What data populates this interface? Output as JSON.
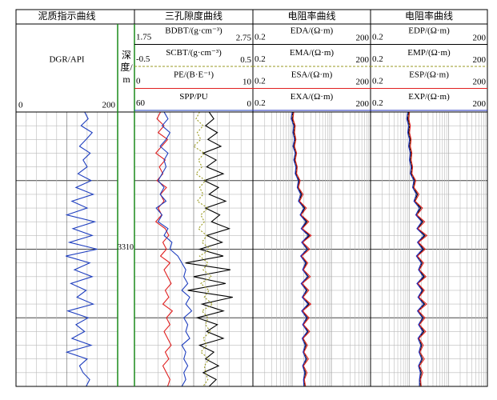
{
  "chart_data": {
    "type": "well-log",
    "ylim": [
      3300,
      3320
    ],
    "yticks": [
      3310
    ],
    "grid": {
      "major": 5,
      "minor": 1
    },
    "depth_label": "深度/m",
    "depth": [
      3300,
      3300.5,
      3301,
      3301.5,
      3302,
      3302.5,
      3303,
      3303.5,
      3304,
      3304.5,
      3305,
      3305.5,
      3306,
      3306.5,
      3307,
      3307.5,
      3308,
      3308.5,
      3309,
      3309.5,
      3310,
      3310.5,
      3311,
      3311.5,
      3312,
      3312.5,
      3313,
      3313.5,
      3314,
      3314.5,
      3315,
      3315.5,
      3316,
      3316.5,
      3317,
      3317.5,
      3318,
      3318.5,
      3319,
      3319.5,
      3320
    ],
    "tracks": [
      {
        "title": "泥质指示曲线",
        "curves": [
          {
            "name": "DGR/API",
            "color": "#1f3fbf",
            "xlim": [
              0,
              200
            ],
            "log": false,
            "dash": false,
            "values": [
              135,
              142,
              128,
              150,
              138,
              125,
              146,
              132,
              140,
              122,
              148,
              118,
              152,
              110,
              140,
              100,
              155,
              112,
              150,
              105,
              160,
              98,
              145,
              115,
              150,
              108,
              138,
              120,
              152,
              102,
              142,
              118,
              135,
              110,
              148,
              100,
              140,
              125,
              132,
              145,
              138
            ]
          }
        ]
      },
      {
        "title": "三孔隙度曲线",
        "curves": [
          {
            "name": "BDBT/(g·cm⁻³)",
            "color": "#000000",
            "xlim": [
              1.75,
              2.75
            ],
            "log": false,
            "dash": false,
            "values": [
              2.38,
              2.42,
              2.35,
              2.45,
              2.37,
              2.48,
              2.33,
              2.44,
              2.36,
              2.5,
              2.34,
              2.46,
              2.38,
              2.52,
              2.35,
              2.47,
              2.4,
              2.55,
              2.36,
              2.49,
              2.3,
              2.5,
              2.18,
              2.56,
              2.25,
              2.52,
              2.2,
              2.58,
              2.32,
              2.5,
              2.28,
              2.45,
              2.36,
              2.5,
              2.3,
              2.42,
              2.35,
              2.46,
              2.33,
              2.44,
              2.38
            ]
          },
          {
            "name": "SCBT/(g·cm⁻³)",
            "color": "#9a9a20",
            "xlim": [
              -0.5,
              0.5
            ],
            "log": false,
            "dash": true,
            "values": [
              0.05,
              0.02,
              0.08,
              0.03,
              0.06,
              0.0,
              0.09,
              0.04,
              0.07,
              0.02,
              0.1,
              0.05,
              0.08,
              0.03,
              0.12,
              0.06,
              0.09,
              0.04,
              0.11,
              0.07,
              0.14,
              0.05,
              0.12,
              0.08,
              0.15,
              0.06,
              0.13,
              0.09,
              0.16,
              0.07,
              0.12,
              0.1,
              0.14,
              0.08,
              0.11,
              0.06,
              0.13,
              0.09,
              0.1,
              0.12,
              0.08
            ]
          },
          {
            "name": "PE/(B·E⁻¹)",
            "color": "#e02020",
            "xlim": [
              0,
              10
            ],
            "log": false,
            "dash": false,
            "values": [
              2.2,
              1.9,
              2.5,
              2.0,
              2.8,
              2.3,
              1.8,
              2.6,
              2.1,
              2.4,
              1.9,
              2.7,
              2.2,
              2.5,
              2.0,
              2.3,
              1.8,
              2.6,
              2.9,
              2.4,
              2.7,
              2.2,
              3.0,
              2.5,
              2.8,
              3.1,
              2.6,
              2.9,
              2.4,
              3.2,
              2.7,
              3.0,
              2.5,
              2.8,
              3.1,
              2.6,
              2.9,
              2.4,
              2.7,
              3.0,
              2.8
            ]
          },
          {
            "name": "SPP/PU",
            "color": "#1f3fbf",
            "xlim": [
              60,
              0
            ],
            "log": false,
            "dash": false,
            "values": [
              45,
              43,
              46,
              42,
              44,
              47,
              43,
              45,
              44,
              46,
              48,
              45,
              47,
              44,
              49,
              46,
              48,
              43,
              45,
              41,
              42,
              38,
              36,
              34,
              35,
              33,
              36,
              32,
              34,
              31,
              35,
              33,
              34,
              32,
              36,
              34,
              35,
              33,
              35,
              34,
              36
            ]
          }
        ]
      },
      {
        "title": "电阻率曲线",
        "curves": [
          {
            "name": "EDA/(Ω·m)",
            "color": "#000000",
            "xlim": [
              0.2,
              200
            ],
            "log": true,
            "dash": false,
            "values": [
              2.1,
              2.0,
              2.3,
              2.2,
              2.4,
              2.2,
              2.5,
              2.3,
              2.6,
              2.5,
              3.0,
              2.8,
              3.5,
              3.0,
              4.2,
              3.3,
              4.8,
              3.5,
              5.5,
              3.6,
              5.0,
              3.4,
              4.6,
              3.8,
              5.2,
              3.5,
              4.8,
              3.7,
              5.4,
              3.6,
              4.9,
              3.8,
              5.1,
              3.7,
              4.5,
              3.9,
              4.7,
              3.8,
              4.4,
              4.0,
              4.2
            ]
          },
          {
            "name": "EMA/(Ω·m)",
            "color": "#9a9a20",
            "xlim": [
              0.2,
              200
            ],
            "log": true,
            "dash": true,
            "values": [
              2.0,
              2.1,
              2.2,
              2.3,
              2.3,
              2.3,
              2.4,
              2.4,
              2.5,
              2.6,
              2.8,
              2.9,
              3.2,
              3.1,
              3.8,
              3.4,
              4.3,
              3.6,
              4.9,
              3.7,
              4.6,
              3.5,
              4.3,
              3.9,
              4.8,
              3.6,
              4.5,
              3.8,
              5.0,
              3.7,
              4.6,
              3.9,
              4.8,
              3.8,
              4.3,
              4.0,
              4.5,
              3.9,
              4.2,
              4.1,
              4.1
            ]
          },
          {
            "name": "ESA/(Ω·m)",
            "color": "#e02020",
            "xlim": [
              0.2,
              200
            ],
            "log": true,
            "dash": false,
            "values": [
              2.2,
              2.1,
              2.4,
              2.3,
              2.5,
              2.3,
              2.6,
              2.4,
              2.7,
              2.6,
              3.2,
              2.9,
              3.8,
              3.1,
              4.6,
              3.4,
              5.3,
              3.6,
              6.1,
              3.7,
              5.6,
              3.5,
              5.0,
              3.9,
              5.8,
              3.6,
              5.3,
              3.8,
              6.0,
              3.7,
              5.4,
              3.9,
              5.6,
              3.8,
              4.9,
              4.0,
              5.2,
              3.9,
              4.8,
              4.1,
              4.4
            ]
          },
          {
            "name": "EXA/(Ω·m)",
            "color": "#2030c0",
            "xlim": [
              0.2,
              200
            ],
            "log": true,
            "dash": false,
            "values": [
              2.0,
              1.9,
              2.2,
              2.1,
              2.3,
              2.1,
              2.4,
              2.2,
              2.5,
              2.4,
              2.9,
              2.7,
              3.3,
              2.9,
              4.0,
              3.2,
              4.5,
              3.4,
              5.2,
              3.5,
              4.8,
              3.3,
              4.4,
              3.7,
              5.0,
              3.4,
              4.6,
              3.6,
              5.1,
              3.5,
              4.7,
              3.7,
              4.9,
              3.6,
              4.3,
              3.8,
              4.5,
              3.7,
              4.2,
              3.9,
              4.0
            ]
          }
        ]
      },
      {
        "title": "电阻率曲线",
        "curves": [
          {
            "name": "EDP/(Ω·m)",
            "color": "#000000",
            "xlim": [
              0.2,
              200
            ],
            "log": true,
            "dash": false,
            "values": [
              1.9,
              1.8,
              2.0,
              1.9,
              2.1,
              2.0,
              2.2,
              2.1,
              2.3,
              2.2,
              2.7,
              2.5,
              3.2,
              2.7,
              3.9,
              3.0,
              4.4,
              3.2,
              5.0,
              3.3,
              4.6,
              3.1,
              4.2,
              3.5,
              4.8,
              3.2,
              4.4,
              3.4,
              4.9,
              3.3,
              4.5,
              3.5,
              4.7,
              3.4,
              4.1,
              3.6,
              4.3,
              3.5,
              4.0,
              3.7,
              3.8
            ]
          },
          {
            "name": "EMP/(Ω·m)",
            "color": "#9a9a20",
            "xlim": [
              0.2,
              200
            ],
            "log": true,
            "dash": true,
            "values": [
              1.8,
              1.9,
              2.0,
              2.0,
              2.0,
              2.1,
              2.1,
              2.2,
              2.2,
              2.3,
              2.5,
              2.6,
              2.9,
              2.8,
              3.5,
              3.1,
              4.0,
              3.3,
              4.5,
              3.4,
              4.2,
              3.2,
              4.0,
              3.6,
              4.4,
              3.3,
              4.1,
              3.5,
              4.6,
              3.4,
              4.2,
              3.6,
              4.4,
              3.5,
              3.9,
              3.7,
              4.1,
              3.6,
              3.8,
              3.8,
              3.7
            ]
          },
          {
            "name": "ESP/(Ω·m)",
            "color": "#e02020",
            "xlim": [
              0.2,
              200
            ],
            "log": true,
            "dash": false,
            "values": [
              2.0,
              1.9,
              2.1,
              2.0,
              2.2,
              2.1,
              2.3,
              2.2,
              2.4,
              2.3,
              2.9,
              2.6,
              3.5,
              2.8,
              4.3,
              3.1,
              4.9,
              3.3,
              5.6,
              3.4,
              5.1,
              3.2,
              4.6,
              3.6,
              5.3,
              3.3,
              4.8,
              3.5,
              5.5,
              3.4,
              5.0,
              3.6,
              5.2,
              3.5,
              4.5,
              3.7,
              4.8,
              3.6,
              4.4,
              3.8,
              4.0
            ]
          },
          {
            "name": "EXP/(Ω·m)",
            "color": "#2030c0",
            "xlim": [
              0.2,
              200
            ],
            "log": true,
            "dash": false,
            "values": [
              1.8,
              1.7,
              1.9,
              1.8,
              2.0,
              1.9,
              2.1,
              2.0,
              2.2,
              2.1,
              2.6,
              2.4,
              3.0,
              2.6,
              3.6,
              2.9,
              4.1,
              3.1,
              4.7,
              3.2,
              4.3,
              3.0,
              4.0,
              3.4,
              4.5,
              3.1,
              4.2,
              3.3,
              4.6,
              3.2,
              4.3,
              3.4,
              4.4,
              3.3,
              3.9,
              3.5,
              4.1,
              3.4,
              3.8,
              3.6,
              3.6
            ]
          }
        ]
      }
    ]
  }
}
